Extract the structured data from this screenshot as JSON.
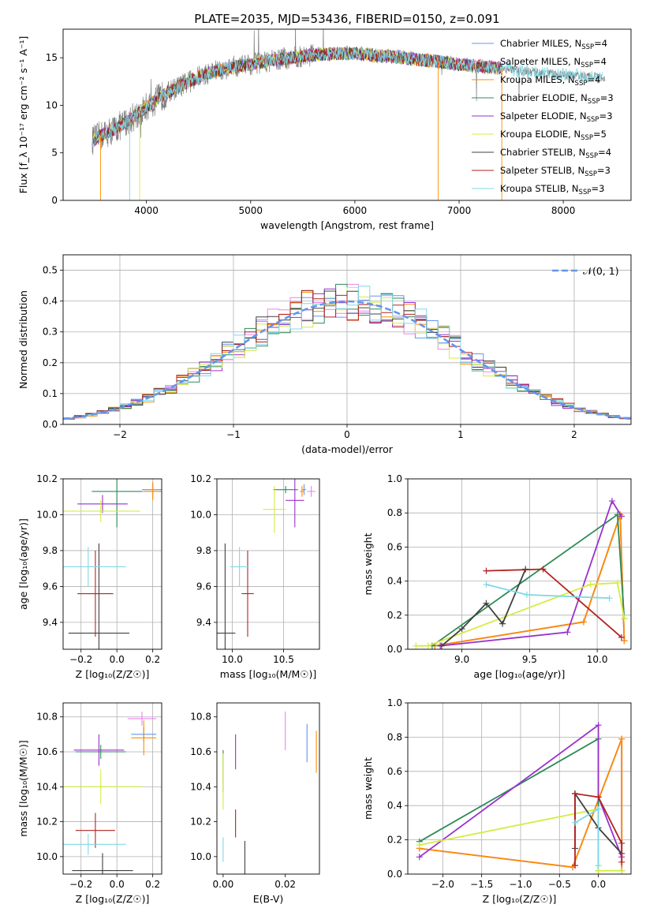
{
  "figure": {
    "title": "PLATE=2035, MJD=53436, FIBERID=0150, z=0.091"
  },
  "colors": {
    "Chabrier MILES": "#6495ed",
    "Salpeter MILES": "#ee82ee",
    "Kroupa MILES": "#ff8c00",
    "Chabrier ELODIE": "#2e8b57",
    "Salpeter ELODIE": "#9932cc",
    "Kroupa ELODIE": "#d4ec43",
    "Chabrier STELIB": "#404040",
    "Salpeter STELIB": "#b22222",
    "Kroupa STELIB": "#7fd8e6",
    "spectrum": "#808080"
  },
  "chart_data": [
    {
      "id": "spectrum",
      "type": "line",
      "title": "PLATE=2035, MJD=53436, FIBERID=0150, z=0.091",
      "xlabel": "wavelength [Angstrom, rest frame]",
      "ylabel": "Flux [f_λ 10⁻¹⁷ erg cm⁻² s⁻¹ A⁻¹]",
      "xlim": [
        3200,
        8650
      ],
      "ylim": [
        0,
        18
      ],
      "xticks": [
        "4000",
        "5000",
        "6000",
        "7000",
        "8000"
      ],
      "yticks": [
        "0",
        "5",
        "10",
        "15"
      ],
      "grid": false,
      "legend_position": "right",
      "continuum": {
        "x": [
          3480,
          3600,
          3700,
          3800,
          3900,
          4000,
          4100,
          4200,
          4300,
          4400,
          4500,
          4600,
          4800,
          5000,
          5200,
          5400,
          5600,
          5800,
          6000,
          6200,
          6400,
          6600,
          6800,
          7000,
          7200,
          7400,
          7600,
          7800,
          8000,
          8200,
          8400
        ],
        "y": [
          6.3,
          7.0,
          7.5,
          8.2,
          9.0,
          9.8,
          10.6,
          11.3,
          11.9,
          12.4,
          13.0,
          13.4,
          14.0,
          14.3,
          14.7,
          15.0,
          15.3,
          15.4,
          15.5,
          15.2,
          15.1,
          14.8,
          14.6,
          14.3,
          14.1,
          13.9,
          13.6,
          13.4,
          13.2,
          13.1,
          12.9
        ]
      },
      "series": [
        {
          "name": "Chabrier MILES, N$_{SSP}$=4",
          "label_main": "Chabrier MILES, N",
          "label_sub": "SSP",
          "label_tail": "=4"
        },
        {
          "name": "Salpeter MILES, N$_{SSP}$=4",
          "label_main": "Salpeter MILES, N",
          "label_sub": "SSP",
          "label_tail": "=4"
        },
        {
          "name": "Kroupa MILES, N$_{SSP}$=4",
          "label_main": "Kroupa MILES, N",
          "label_sub": "SSP",
          "label_tail": "=4"
        },
        {
          "name": "Chabrier ELODIE, N$_{SSP}$=3",
          "label_main": "Chabrier ELODIE, N",
          "label_sub": "SSP",
          "label_tail": "=3"
        },
        {
          "name": "Salpeter ELODIE, N$_{SSP}$=3",
          "label_main": "Salpeter ELODIE, N",
          "label_sub": "SSP",
          "label_tail": "=3"
        },
        {
          "name": "Kroupa ELODIE, N$_{SSP}$=5",
          "label_main": "Kroupa ELODIE, N",
          "label_sub": "SSP",
          "label_tail": "=5"
        },
        {
          "name": "Chabrier STELIB, N$_{SSP}$=4",
          "label_main": "Chabrier STELIB, N",
          "label_sub": "SSP",
          "label_tail": "=4"
        },
        {
          "name": "Salpeter STELIB, N$_{SSP}$=3",
          "label_main": "Salpeter STELIB, N",
          "label_sub": "SSP",
          "label_tail": "=3"
        },
        {
          "name": "Kroupa STELIB, N$_{SSP}$=3",
          "label_main": "Kroupa STELIB, N",
          "label_sub": "SSP",
          "label_tail": "=3"
        }
      ]
    },
    {
      "id": "residuals",
      "type": "step",
      "xlabel": "(data-model)/error",
      "ylabel": "Normed distribution",
      "xlim": [
        -2.5,
        2.5
      ],
      "ylim": [
        0,
        0.55
      ],
      "xticks": [
        "−2",
        "−1",
        "0",
        "1",
        "2"
      ],
      "yticks": [
        "0.0",
        "0.1",
        "0.2",
        "0.3",
        "0.4",
        "0.5"
      ],
      "grid": true,
      "legend_position": "top-right",
      "gaussian_label": "𝒩(0, 1)",
      "bin_width": 0.1,
      "bin_start": -2.5
    },
    {
      "id": "age_vs_Z",
      "type": "errorbar",
      "xlabel": "Z [log₁₀(Z/Z☉)]",
      "ylabel": "age  [log₁₀(age/yr)]",
      "xlim": [
        -0.3,
        0.25
      ],
      "ylim": [
        9.25,
        10.2
      ],
      "xticks": [
        -0.2,
        0.0,
        0.2
      ],
      "xticklabels": [
        "−0.2",
        "0.0",
        "0.2"
      ],
      "yticks": [
        9.4,
        9.6,
        9.8,
        10.0,
        10.2
      ],
      "yticklabels": [
        "9.4",
        "9.6",
        "9.8",
        "10.0",
        "10.2"
      ],
      "grid": true,
      "points": [
        {
          "series": "Chabrier MILES",
          "x": 0.2,
          "xerr": 0.06,
          "y": 10.14,
          "yerr": 0.04
        },
        {
          "series": "Salpeter MILES",
          "x": 0.2,
          "xerr": 0.06,
          "y": 10.13,
          "yerr": 0.04
        },
        {
          "series": "Kroupa MILES",
          "x": 0.2,
          "xerr": 0.05,
          "y": 10.13,
          "yerr": 0.05
        },
        {
          "series": "Chabrier ELODIE",
          "x": 0.0,
          "xerr": 0.14,
          "y": 10.13,
          "yerr": 0.2
        },
        {
          "series": "Salpeter ELODIE",
          "x": -0.08,
          "xerr": 0.14,
          "y": 10.06,
          "yerr": 0.05
        },
        {
          "series": "Kroupa ELODIE",
          "x": -0.09,
          "xerr": 0.22,
          "y": 10.02,
          "yerr": 0.06
        },
        {
          "series": "Chabrier STELIB",
          "x": -0.1,
          "xerr": 0.17,
          "y": 9.34,
          "yerr": 0.5
        },
        {
          "series": "Salpeter STELIB",
          "x": -0.12,
          "xerr": 0.1,
          "y": 9.56,
          "yerr": 0.24
        },
        {
          "series": "Kroupa STELIB",
          "x": -0.16,
          "xerr": 0.21,
          "y": 9.71,
          "yerr": 0.11
        }
      ]
    },
    {
      "id": "age_vs_mass",
      "type": "errorbar",
      "xlabel": "mass [log₁₀(M/M☉)]",
      "ylabel": "",
      "xlim": [
        9.85,
        10.85
      ],
      "ylim": [
        9.25,
        10.2
      ],
      "xticks": [
        10.0,
        10.5
      ],
      "xticklabels": [
        "10.0",
        "10.5"
      ],
      "yticks": [
        9.4,
        9.6,
        9.8,
        10.0,
        10.2
      ],
      "yticklabels": [
        "9.4",
        "9.6",
        "9.8",
        "10.0",
        "10.2"
      ],
      "grid": true,
      "points": [
        {
          "series": "Chabrier MILES",
          "x": 10.7,
          "xerr": 0.02,
          "y": 10.14,
          "yerr": 0.03
        },
        {
          "series": "Salpeter MILES",
          "x": 10.77,
          "xerr": 0.04,
          "y": 10.13,
          "yerr": 0.03
        },
        {
          "series": "Kroupa MILES",
          "x": 10.68,
          "xerr": 0.02,
          "y": 10.13,
          "yerr": 0.03
        },
        {
          "series": "Chabrier ELODIE",
          "x": 10.52,
          "xerr": 0.12,
          "y": 10.14,
          "yerr": 0.02
        },
        {
          "series": "Salpeter ELODIE",
          "x": 10.61,
          "xerr": 0.09,
          "y": 10.08,
          "yerr": 0.15
        },
        {
          "series": "Kroupa ELODIE",
          "x": 10.41,
          "xerr": 0.11,
          "y": 10.03,
          "yerr": 0.13
        },
        {
          "series": "Chabrier STELIB",
          "x": 9.93,
          "xerr": 0.1,
          "y": 9.34,
          "yerr": 0.5
        },
        {
          "series": "Salpeter STELIB",
          "x": 10.15,
          "xerr": 0.06,
          "y": 9.56,
          "yerr": 0.24
        },
        {
          "series": "Kroupa STELIB",
          "x": 10.07,
          "xerr": 0.09,
          "y": 9.71,
          "yerr": 0.11
        }
      ]
    },
    {
      "id": "weight_vs_age",
      "type": "line",
      "xlabel": "age  [log₁₀(age/yr)]",
      "ylabel": "mass weight",
      "xlim": [
        8.6,
        10.25
      ],
      "ylim": [
        0,
        1.0
      ],
      "xticks": [
        9.0,
        9.5,
        10.0
      ],
      "xticklabels": [
        "9.0",
        "9.5",
        "10.0"
      ],
      "yticks": [
        0,
        0.2,
        0.4,
        0.6,
        0.8,
        1.0
      ],
      "yticklabels": [
        "0.0",
        "0.2",
        "0.4",
        "0.6",
        "0.8",
        "1.0"
      ],
      "grid": true,
      "series": [
        {
          "series": "Chabrier MILES",
          "x": [
            8.8,
            9.9,
            10.17,
            10.2
          ],
          "y": [
            0.02,
            0.16,
            0.79,
            0.05
          ]
        },
        {
          "series": "Salpeter MILES",
          "x": [
            8.8,
            9.9,
            10.17,
            10.2
          ],
          "y": [
            0.02,
            0.16,
            0.79,
            0.05
          ]
        },
        {
          "series": "Kroupa MILES",
          "x": [
            8.8,
            9.9,
            10.17,
            10.2
          ],
          "y": [
            0.02,
            0.16,
            0.79,
            0.05
          ]
        },
        {
          "series": "Chabrier ELODIE",
          "x": [
            8.78,
            10.15,
            10.2
          ],
          "y": [
            0.02,
            0.79,
            0.18
          ]
        },
        {
          "series": "Salpeter ELODIE",
          "x": [
            8.84,
            9.78,
            10.11,
            10.18
          ],
          "y": [
            0.02,
            0.1,
            0.87,
            0.78
          ]
        },
        {
          "series": "Kroupa ELODIE",
          "x": [
            8.66,
            8.75,
            9.95,
            10.15,
            10.2
          ],
          "y": [
            0.02,
            0.02,
            0.38,
            0.39,
            0.18
          ]
        },
        {
          "series": "Chabrier STELIB",
          "x": [
            8.85,
            9.0,
            9.18,
            9.3,
            9.47
          ],
          "y": [
            0.02,
            0.12,
            0.27,
            0.15,
            0.47
          ]
        },
        {
          "series": "Salpeter STELIB",
          "x": [
            9.18,
            9.6,
            10.18
          ],
          "y": [
            0.46,
            0.47,
            0.07
          ]
        },
        {
          "series": "Kroupa STELIB",
          "x": [
            9.18,
            9.48,
            10.09
          ],
          "y": [
            0.38,
            0.32,
            0.3
          ]
        }
      ]
    },
    {
      "id": "mass_vs_Z",
      "type": "errorbar",
      "xlabel": "Z [log₁₀(Z/Z☉)]",
      "ylabel": "mass [log₁₀(M/M☉)]",
      "xlim": [
        -0.3,
        0.25
      ],
      "ylim": [
        9.9,
        10.88
      ],
      "xticks": [
        -0.2,
        0.0,
        0.2
      ],
      "xticklabels": [
        "−0.2",
        "0.0",
        "0.2"
      ],
      "yticks": [
        10.0,
        10.2,
        10.4,
        10.6,
        10.8
      ],
      "yticklabels": [
        "10.0",
        "10.2",
        "10.4",
        "10.6",
        "10.8"
      ],
      "grid": true,
      "points": [
        {
          "series": "Chabrier MILES",
          "x": 0.15,
          "xerr": 0.07,
          "y": 10.7,
          "yerr": 0.04
        },
        {
          "series": "Salpeter MILES",
          "x": 0.14,
          "xerr": 0.08,
          "y": 10.79,
          "yerr": 0.04
        },
        {
          "series": "Kroupa MILES",
          "x": 0.15,
          "xerr": 0.07,
          "y": 10.68,
          "yerr": 0.1
        },
        {
          "series": "Chabrier ELODIE",
          "x": -0.09,
          "xerr": 0.14,
          "y": 10.6,
          "yerr": 0.04
        },
        {
          "series": "Salpeter ELODIE",
          "x": -0.1,
          "xerr": 0.14,
          "y": 10.61,
          "yerr": 0.09
        },
        {
          "series": "Kroupa ELODIE",
          "x": -0.09,
          "xerr": 0.23,
          "y": 10.4,
          "yerr": 0.1
        },
        {
          "series": "Chabrier STELIB",
          "x": -0.08,
          "xerr": 0.17,
          "y": 9.92,
          "yerr": 0.1
        },
        {
          "series": "Salpeter STELIB",
          "x": -0.12,
          "xerr": 0.11,
          "y": 10.15,
          "yerr": 0.1
        },
        {
          "series": "Kroupa STELIB",
          "x": -0.16,
          "xerr": 0.21,
          "y": 10.07,
          "yerr": 0.06
        }
      ]
    },
    {
      "id": "mass_vs_ebv",
      "type": "errorbar",
      "xlabel": "E(B-V)",
      "ylabel": "",
      "xlim": [
        -0.002,
        0.031
      ],
      "ylim": [
        9.9,
        10.88
      ],
      "xticks": [
        0.0,
        0.02
      ],
      "xticklabels": [
        "0.00",
        "0.02"
      ],
      "yticks": [
        10.0,
        10.2,
        10.4,
        10.6,
        10.8
      ],
      "yticklabels": [
        "10.0",
        "10.2",
        "10.4",
        "10.6",
        "10.8"
      ],
      "grid": false,
      "points": [
        {
          "series": "Chabrier MILES",
          "x": 0.027,
          "xerr": 0,
          "y": 10.65,
          "yerr": 0.11
        },
        {
          "series": "Salpeter MILES",
          "x": 0.02,
          "xerr": 0,
          "y": 10.72,
          "yerr": 0.11
        },
        {
          "series": "Kroupa MILES",
          "x": 0.03,
          "xerr": 0,
          "y": 10.6,
          "yerr": 0.12
        },
        {
          "series": "Chabrier ELODIE",
          "x": 0.0,
          "xerr": 0,
          "y": 10.49,
          "yerr": 0.12
        },
        {
          "series": "Salpeter ELODIE",
          "x": 0.004,
          "xerr": 0,
          "y": 10.6,
          "yerr": 0.1
        },
        {
          "series": "Kroupa ELODIE",
          "x": 0.0,
          "xerr": 0,
          "y": 10.43,
          "yerr": 0.16
        },
        {
          "series": "Chabrier STELIB",
          "x": 0.007,
          "xerr": 0,
          "y": 9.99,
          "yerr": 0.1
        },
        {
          "series": "Salpeter STELIB",
          "x": 0.004,
          "xerr": 0,
          "y": 10.19,
          "yerr": 0.08
        },
        {
          "series": "Kroupa STELIB",
          "x": 0.0,
          "xerr": 0,
          "y": 10.04,
          "yerr": 0.07
        }
      ]
    },
    {
      "id": "weight_vs_Z",
      "type": "line",
      "xlabel": "Z [log₁₀(Z/Z☉)]",
      "ylabel": "mass weight",
      "xlim": [
        -2.45,
        0.42
      ],
      "ylim": [
        0,
        1.0
      ],
      "xticks": [
        -2.0,
        -1.5,
        -1.0,
        -0.5,
        0.0
      ],
      "xticklabels": [
        "−2.0",
        "−1.5",
        "−1.0",
        "−0.5",
        "0.0"
      ],
      "yticks": [
        0,
        0.2,
        0.4,
        0.6,
        0.8,
        1.0
      ],
      "yticklabels": [
        "0.0",
        "0.2",
        "0.4",
        "0.6",
        "0.8",
        "1.0"
      ],
      "grid": true,
      "series": [
        {
          "series": "Chabrier MILES",
          "x": [
            -2.3,
            -0.33,
            0.3,
            0.3
          ],
          "y": [
            0.15,
            0.04,
            0.79,
            0.02
          ]
        },
        {
          "series": "Salpeter MILES",
          "x": [
            -2.3,
            -0.33,
            0.3,
            0.3
          ],
          "y": [
            0.15,
            0.04,
            0.79,
            0.02
          ]
        },
        {
          "series": "Kroupa MILES",
          "x": [
            -2.3,
            -0.33,
            0.3,
            0.3
          ],
          "y": [
            0.15,
            0.04,
            0.79,
            0.02
          ]
        },
        {
          "series": "Chabrier ELODIE",
          "x": [
            -2.3,
            0.0,
            0.0
          ],
          "y": [
            0.19,
            0.79,
            0.02
          ]
        },
        {
          "series": "Salpeter ELODIE",
          "x": [
            -2.3,
            0.0,
            0.0,
            0.3
          ],
          "y": [
            0.1,
            0.87,
            0.45,
            0.1
          ]
        },
        {
          "series": "Kroupa ELODIE",
          "x": [
            -2.3,
            0.0,
            0.0,
            0.3
          ],
          "y": [
            0.17,
            0.38,
            0.02,
            0.02
          ]
        },
        {
          "series": "Chabrier STELIB",
          "x": [
            -0.3,
            -0.3,
            0.0,
            0.3
          ],
          "y": [
            0.15,
            0.47,
            0.27,
            0.12
          ]
        },
        {
          "series": "Salpeter STELIB",
          "x": [
            -0.3,
            -0.3,
            0.0,
            0.3,
            0.3
          ],
          "y": [
            0.05,
            0.47,
            0.45,
            0.18,
            0.07
          ]
        },
        {
          "series": "Kroupa STELIB",
          "x": [
            -0.3,
            0.0,
            0.0
          ],
          "y": [
            0.3,
            0.38,
            0.05
          ]
        }
      ]
    }
  ]
}
